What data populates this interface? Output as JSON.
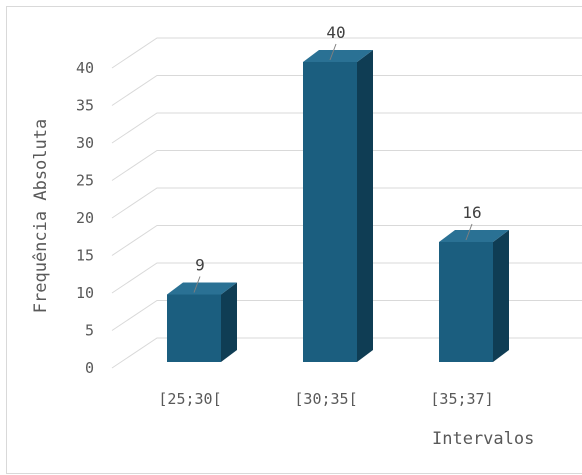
{
  "chart_data": {
    "type": "bar",
    "style": "3d-column",
    "title": "",
    "categories": [
      "[25;30[",
      "[30;35[",
      "[35;37]"
    ],
    "values": [
      9,
      40,
      16
    ],
    "data_labels": [
      "9",
      "40",
      "16"
    ],
    "xlabel": "Intervalos",
    "ylabel": "Frequência Absoluta",
    "ylim": [
      0,
      40
    ],
    "yticks": [
      "0",
      "5",
      "10",
      "15",
      "20",
      "25",
      "30",
      "35",
      "40"
    ],
    "grid": true,
    "legend": "none"
  },
  "colors": {
    "bar_front": "#1b5e7f",
    "bar_side": "#0f3d54",
    "bar_top": "#2a7194",
    "grid": "#d9d9d9",
    "text": "#595959"
  }
}
